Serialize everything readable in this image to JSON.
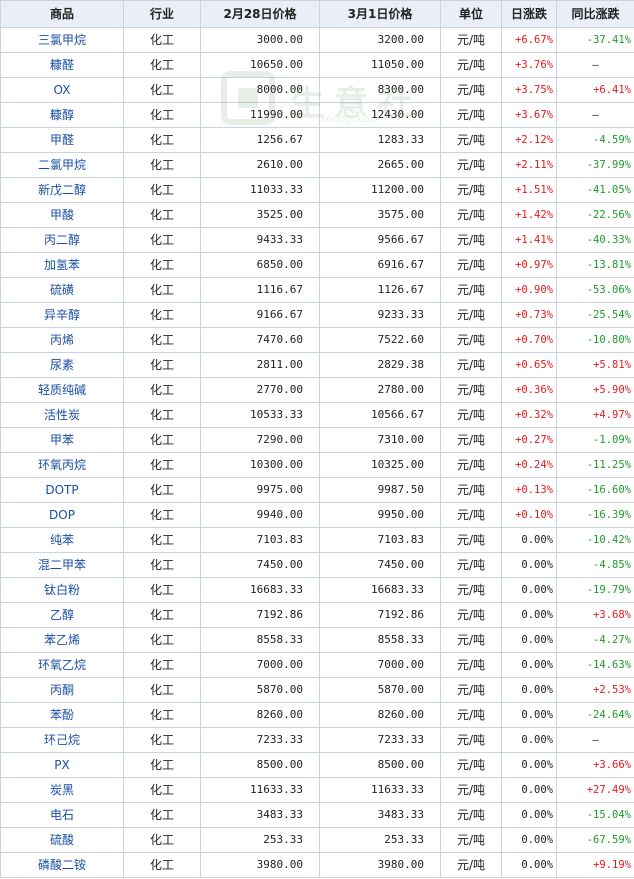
{
  "headers": {
    "name": "商品",
    "industry": "行业",
    "price_a": "2月28日价格",
    "price_b": "3月1日价格",
    "unit": "单位",
    "daily": "日涨跌",
    "yoy": "同比涨跌"
  },
  "watermark": {
    "text": "生意社",
    "sub": "100ppi.com"
  },
  "colors": {
    "up": "#e5191c",
    "down": "#1f9a2a",
    "header_bg": "#e9eef7",
    "link": "#1a4fa3"
  },
  "rows": [
    {
      "name": "三氯甲烷",
      "industry": "化工",
      "price_a": "3000.00",
      "price_b": "3200.00",
      "unit": "元/吨",
      "daily": "+6.67%",
      "yoy": "-37.41%"
    },
    {
      "name": "糠醛",
      "industry": "化工",
      "price_a": "10650.00",
      "price_b": "11050.00",
      "unit": "元/吨",
      "daily": "+3.76%",
      "yoy": "—"
    },
    {
      "name": "OX",
      "industry": "化工",
      "price_a": "8000.00",
      "price_b": "8300.00",
      "unit": "元/吨",
      "daily": "+3.75%",
      "yoy": "+6.41%"
    },
    {
      "name": "糠醇",
      "industry": "化工",
      "price_a": "11990.00",
      "price_b": "12430.00",
      "unit": "元/吨",
      "daily": "+3.67%",
      "yoy": "—"
    },
    {
      "name": "甲醛",
      "industry": "化工",
      "price_a": "1256.67",
      "price_b": "1283.33",
      "unit": "元/吨",
      "daily": "+2.12%",
      "yoy": "-4.59%"
    },
    {
      "name": "二氯甲烷",
      "industry": "化工",
      "price_a": "2610.00",
      "price_b": "2665.00",
      "unit": "元/吨",
      "daily": "+2.11%",
      "yoy": "-37.99%"
    },
    {
      "name": "新戊二醇",
      "industry": "化工",
      "price_a": "11033.33",
      "price_b": "11200.00",
      "unit": "元/吨",
      "daily": "+1.51%",
      "yoy": "-41.05%"
    },
    {
      "name": "甲酸",
      "industry": "化工",
      "price_a": "3525.00",
      "price_b": "3575.00",
      "unit": "元/吨",
      "daily": "+1.42%",
      "yoy": "-22.56%"
    },
    {
      "name": "丙二醇",
      "industry": "化工",
      "price_a": "9433.33",
      "price_b": "9566.67",
      "unit": "元/吨",
      "daily": "+1.41%",
      "yoy": "-40.33%"
    },
    {
      "name": "加氢苯",
      "industry": "化工",
      "price_a": "6850.00",
      "price_b": "6916.67",
      "unit": "元/吨",
      "daily": "+0.97%",
      "yoy": "-13.81%"
    },
    {
      "name": "硫磺",
      "industry": "化工",
      "price_a": "1116.67",
      "price_b": "1126.67",
      "unit": "元/吨",
      "daily": "+0.90%",
      "yoy": "-53.06%"
    },
    {
      "name": "异辛醇",
      "industry": "化工",
      "price_a": "9166.67",
      "price_b": "9233.33",
      "unit": "元/吨",
      "daily": "+0.73%",
      "yoy": "-25.54%"
    },
    {
      "name": "丙烯",
      "industry": "化工",
      "price_a": "7470.60",
      "price_b": "7522.60",
      "unit": "元/吨",
      "daily": "+0.70%",
      "yoy": "-10.80%"
    },
    {
      "name": "尿素",
      "industry": "化工",
      "price_a": "2811.00",
      "price_b": "2829.38",
      "unit": "元/吨",
      "daily": "+0.65%",
      "yoy": "+5.81%"
    },
    {
      "name": "轻质纯碱",
      "industry": "化工",
      "price_a": "2770.00",
      "price_b": "2780.00",
      "unit": "元/吨",
      "daily": "+0.36%",
      "yoy": "+5.90%"
    },
    {
      "name": "活性炭",
      "industry": "化工",
      "price_a": "10533.33",
      "price_b": "10566.67",
      "unit": "元/吨",
      "daily": "+0.32%",
      "yoy": "+4.97%"
    },
    {
      "name": "甲苯",
      "industry": "化工",
      "price_a": "7290.00",
      "price_b": "7310.00",
      "unit": "元/吨",
      "daily": "+0.27%",
      "yoy": "-1.09%"
    },
    {
      "name": "环氧丙烷",
      "industry": "化工",
      "price_a": "10300.00",
      "price_b": "10325.00",
      "unit": "元/吨",
      "daily": "+0.24%",
      "yoy": "-11.25%"
    },
    {
      "name": "DOTP",
      "industry": "化工",
      "price_a": "9975.00",
      "price_b": "9987.50",
      "unit": "元/吨",
      "daily": "+0.13%",
      "yoy": "-16.60%"
    },
    {
      "name": "DOP",
      "industry": "化工",
      "price_a": "9940.00",
      "price_b": "9950.00",
      "unit": "元/吨",
      "daily": "+0.10%",
      "yoy": "-16.39%"
    },
    {
      "name": "纯苯",
      "industry": "化工",
      "price_a": "7103.83",
      "price_b": "7103.83",
      "unit": "元/吨",
      "daily": "0.00%",
      "yoy": "-10.42%"
    },
    {
      "name": "混二甲苯",
      "industry": "化工",
      "price_a": "7450.00",
      "price_b": "7450.00",
      "unit": "元/吨",
      "daily": "0.00%",
      "yoy": "-4.85%"
    },
    {
      "name": "钛白粉",
      "industry": "化工",
      "price_a": "16683.33",
      "price_b": "16683.33",
      "unit": "元/吨",
      "daily": "0.00%",
      "yoy": "-19.79%"
    },
    {
      "name": "乙醇",
      "industry": "化工",
      "price_a": "7192.86",
      "price_b": "7192.86",
      "unit": "元/吨",
      "daily": "0.00%",
      "yoy": "+3.68%"
    },
    {
      "name": "苯乙烯",
      "industry": "化工",
      "price_a": "8558.33",
      "price_b": "8558.33",
      "unit": "元/吨",
      "daily": "0.00%",
      "yoy": "-4.27%"
    },
    {
      "name": "环氧乙烷",
      "industry": "化工",
      "price_a": "7000.00",
      "price_b": "7000.00",
      "unit": "元/吨",
      "daily": "0.00%",
      "yoy": "-14.63%"
    },
    {
      "name": "丙酮",
      "industry": "化工",
      "price_a": "5870.00",
      "price_b": "5870.00",
      "unit": "元/吨",
      "daily": "0.00%",
      "yoy": "+2.53%"
    },
    {
      "name": "苯酚",
      "industry": "化工",
      "price_a": "8260.00",
      "price_b": "8260.00",
      "unit": "元/吨",
      "daily": "0.00%",
      "yoy": "-24.64%"
    },
    {
      "name": "环己烷",
      "industry": "化工",
      "price_a": "7233.33",
      "price_b": "7233.33",
      "unit": "元/吨",
      "daily": "0.00%",
      "yoy": "—"
    },
    {
      "name": "PX",
      "industry": "化工",
      "price_a": "8500.00",
      "price_b": "8500.00",
      "unit": "元/吨",
      "daily": "0.00%",
      "yoy": "+3.66%"
    },
    {
      "name": "炭黑",
      "industry": "化工",
      "price_a": "11633.33",
      "price_b": "11633.33",
      "unit": "元/吨",
      "daily": "0.00%",
      "yoy": "+27.49%"
    },
    {
      "name": "电石",
      "industry": "化工",
      "price_a": "3483.33",
      "price_b": "3483.33",
      "unit": "元/吨",
      "daily": "0.00%",
      "yoy": "-15.04%"
    },
    {
      "name": "硫酸",
      "industry": "化工",
      "price_a": "253.33",
      "price_b": "253.33",
      "unit": "元/吨",
      "daily": "0.00%",
      "yoy": "-67.59%"
    },
    {
      "name": "磷酸二铵",
      "industry": "化工",
      "price_a": "3980.00",
      "price_b": "3980.00",
      "unit": "元/吨",
      "daily": "0.00%",
      "yoy": "+9.19%"
    }
  ]
}
